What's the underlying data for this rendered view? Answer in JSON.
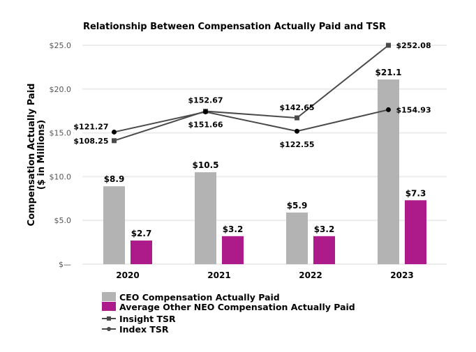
{
  "chart_data": {
    "type": "bar",
    "title": "Relationship Between Compensation Actually Paid and TSR",
    "ylabel": "Compensation Actually Paid\n($ in Millions)",
    "ylabel_lines": [
      "Compensation Actually Paid",
      "($ in Millions)"
    ],
    "xlabel": "",
    "ylim": [
      0,
      25
    ],
    "yticks": [
      0,
      5,
      10,
      15,
      20,
      25
    ],
    "ytick_labels": [
      "$—",
      "$5.0",
      "$10.0",
      "$15.0",
      "$20.0",
      "$25.0"
    ],
    "y2lim": [
      -78,
      252.08
    ],
    "y2_axis_visible": false,
    "grid": true,
    "legend_position": "bottom-left",
    "categories": [
      "2020",
      "2021",
      "2022",
      "2023"
    ],
    "series": [
      {
        "name": "CEO Compensation Actually Paid",
        "kind": "bar",
        "color": "#b3b3b3",
        "values": [
          8.9,
          10.5,
          5.9,
          21.1
        ],
        "labels": [
          "$8.9",
          "$10.5",
          "$5.9",
          "$21.1"
        ]
      },
      {
        "name": "Average Other NEO Compensation Actually Paid",
        "kind": "bar",
        "color": "#ad1a8a",
        "values": [
          2.7,
          3.2,
          3.2,
          7.3
        ],
        "labels": [
          "$2.7",
          "$3.2",
          "$3.2",
          "$7.3"
        ]
      },
      {
        "name": "Insight TSR",
        "kind": "line",
        "marker": "square",
        "color": "#4a4a4a",
        "axis": "secondary",
        "values": [
          108.25,
          152.67,
          142.65,
          252.08
        ],
        "labels": [
          "$108.25",
          "$152.67",
          "$142.65",
          "$252.08"
        ]
      },
      {
        "name": "Index TSR",
        "kind": "line",
        "marker": "circle",
        "color": "#4a4a4a",
        "axis": "secondary",
        "values": [
          121.27,
          151.66,
          122.55,
          154.93
        ],
        "labels": [
          "$121.27",
          "$151.66",
          "$122.55",
          "$154.93"
        ]
      }
    ]
  }
}
